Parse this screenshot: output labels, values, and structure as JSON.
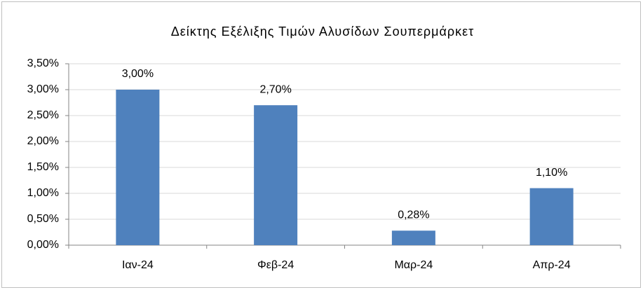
{
  "chart_data": {
    "type": "bar",
    "title": "Δείκτης Εξέλιξης Τιμών Αλυσίδων Σουπερμάρκετ",
    "categories": [
      "Ιαν-24",
      "Φεβ-24",
      "Μαρ-24",
      "Απρ-24"
    ],
    "values": [
      3.0,
      2.7,
      0.28,
      1.1
    ],
    "value_labels": [
      "3,00%",
      "2,70%",
      "0,28%",
      "1,10%"
    ],
    "color": "#4f81bd",
    "ylim": [
      0,
      3.5
    ],
    "yticks": [
      {
        "value": 0,
        "label": "0,00%"
      },
      {
        "value": 0.5,
        "label": "0,50%"
      },
      {
        "value": 1,
        "label": "1,00%"
      },
      {
        "value": 1.5,
        "label": "1,50%"
      },
      {
        "value": 2,
        "label": "2,00%"
      },
      {
        "value": 2.5,
        "label": "2,50%"
      },
      {
        "value": 3,
        "label": "3,00%"
      },
      {
        "value": 3.5,
        "label": "3,50%"
      }
    ],
    "grid": true
  }
}
